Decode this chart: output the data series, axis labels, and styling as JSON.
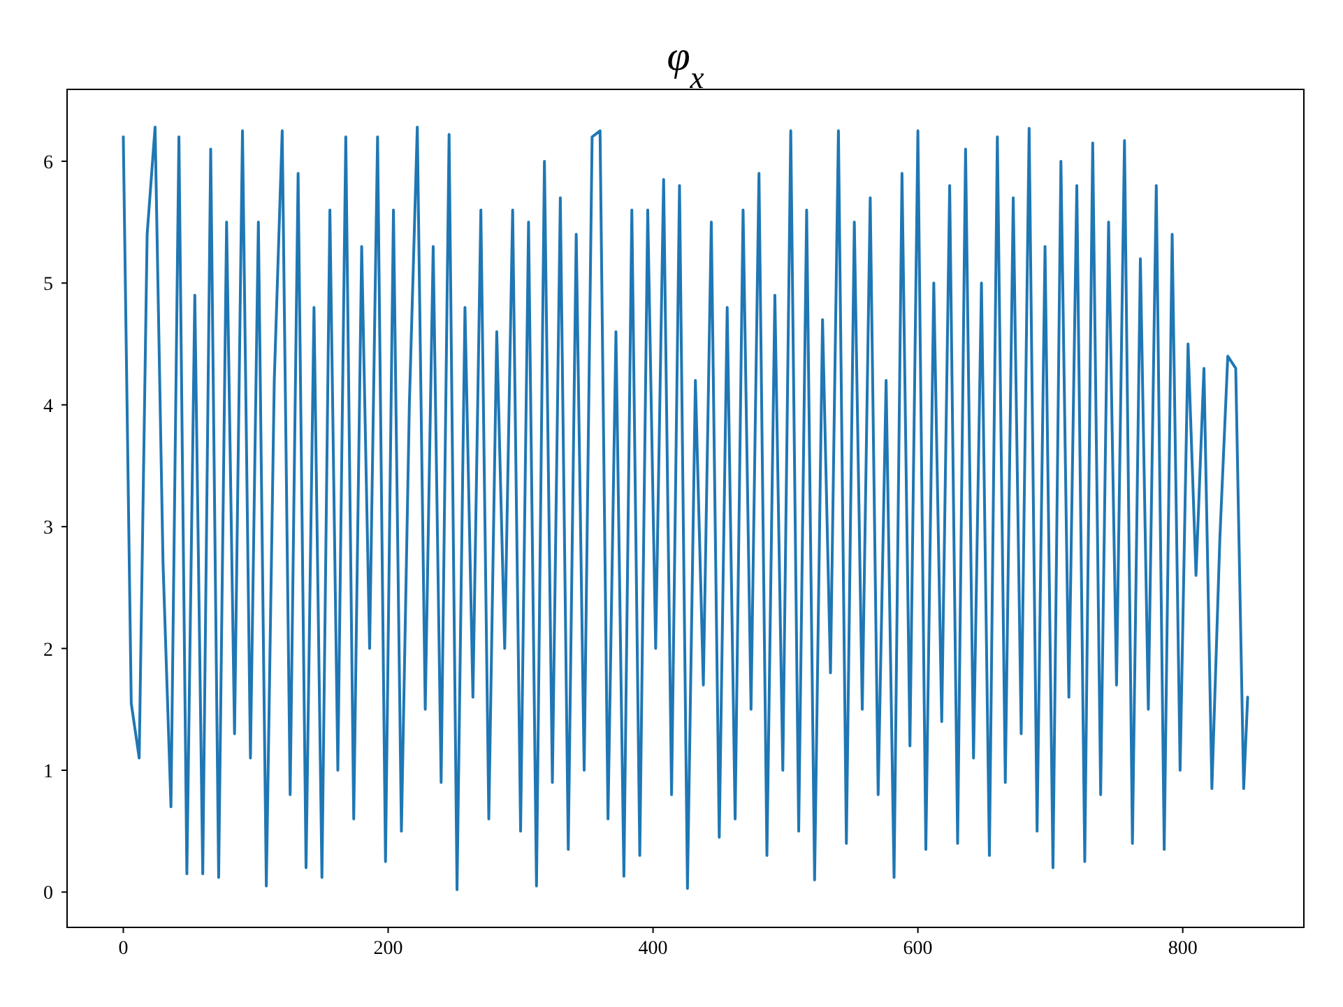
{
  "chart_data": {
    "type": "line",
    "title": "φ$_{x}$",
    "x": [
      0,
      6,
      12,
      18,
      24,
      30,
      36,
      42,
      48,
      54,
      60,
      66,
      72,
      78,
      84,
      90,
      96,
      102,
      108,
      114,
      120,
      126,
      132,
      138,
      144,
      150,
      156,
      162,
      168,
      174,
      180,
      186,
      192,
      198,
      204,
      210,
      216,
      222,
      228,
      234,
      240,
      246,
      252,
      258,
      264,
      270,
      276,
      282,
      288,
      294,
      300,
      306,
      312,
      318,
      324,
      330,
      336,
      342,
      348,
      354,
      360,
      366,
      372,
      378,
      384,
      390,
      396,
      402,
      408,
      414,
      420,
      426,
      432,
      438,
      444,
      450,
      456,
      462,
      468,
      474,
      480,
      486,
      492,
      498,
      504,
      510,
      516,
      522,
      528,
      534,
      540,
      546,
      552,
      558,
      564,
      570,
      576,
      582,
      588,
      594,
      600,
      606,
      612,
      618,
      624,
      630,
      636,
      642,
      648,
      654,
      660,
      666,
      672,
      678,
      684,
      690,
      696,
      702,
      708,
      714,
      720,
      726,
      732,
      738,
      744,
      750,
      756,
      762,
      768,
      774,
      780,
      786,
      792,
      798,
      804,
      810,
      816,
      822,
      828,
      834,
      840,
      846,
      849
    ],
    "series": [
      {
        "color": "#1f77b4",
        "values": [
          6.2,
          1.55,
          1.1,
          5.4,
          6.28,
          2.7,
          0.7,
          6.2,
          0.15,
          4.9,
          0.15,
          6.1,
          0.12,
          5.5,
          1.3,
          6.25,
          1.1,
          5.5,
          0.05,
          4.2,
          6.25,
          0.8,
          5.9,
          0.2,
          4.8,
          0.12,
          5.6,
          1.0,
          6.2,
          0.6,
          5.3,
          2.0,
          6.2,
          0.25,
          5.6,
          0.5,
          4.0,
          6.28,
          1.5,
          5.3,
          0.9,
          6.22,
          0.02,
          4.8,
          1.6,
          5.6,
          0.6,
          4.6,
          2.0,
          5.6,
          0.5,
          5.5,
          0.05,
          6.0,
          0.9,
          5.7,
          0.35,
          5.4,
          1.0,
          6.2,
          6.25,
          0.6,
          4.6,
          0.13,
          5.6,
          0.3,
          5.6,
          2.0,
          5.85,
          0.8,
          5.8,
          0.03,
          4.2,
          1.7,
          5.5,
          0.45,
          4.8,
          0.6,
          5.6,
          1.5,
          5.9,
          0.3,
          4.9,
          1.0,
          6.25,
          0.5,
          5.6,
          0.1,
          4.7,
          1.8,
          6.25,
          0.4,
          5.5,
          1.5,
          5.7,
          0.8,
          4.2,
          0.12,
          5.9,
          1.2,
          6.25,
          0.35,
          5.0,
          1.4,
          5.8,
          0.4,
          6.1,
          1.1,
          5.0,
          0.3,
          6.2,
          0.9,
          5.7,
          1.3,
          6.27,
          0.5,
          5.3,
          0.2,
          6.0,
          1.6,
          5.8,
          0.25,
          6.15,
          0.8,
          5.5,
          1.7,
          6.17,
          0.4,
          5.2,
          1.5,
          5.8,
          0.35,
          5.4,
          1.0,
          4.5,
          2.6,
          4.3,
          0.85,
          2.9,
          4.4,
          4.3,
          0.85,
          1.6
        ]
      }
    ],
    "xlim": [
      -42.45,
      891.45
    ],
    "xticks": [
      0,
      200,
      400,
      600,
      800
    ],
    "ylim": [
      -0.29,
      6.59
    ],
    "yticks": [
      0,
      1,
      2,
      3,
      4,
      5,
      6
    ],
    "grid": false,
    "marker": "none",
    "line_style": "solid"
  }
}
